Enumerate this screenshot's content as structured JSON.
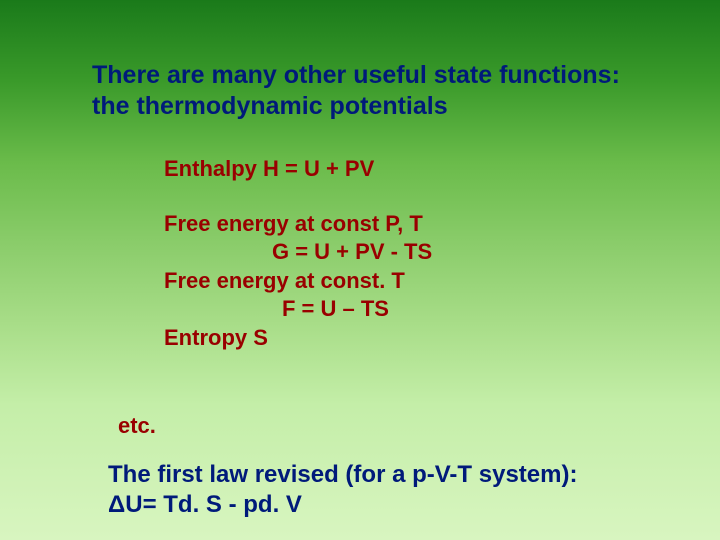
{
  "slide": {
    "background": {
      "gradient_stops": [
        "#1a7a1a",
        "#3a9a2a",
        "#6abb4a",
        "#8acc6a",
        "#a8dd88",
        "#c4eea8",
        "#d8f5c0"
      ]
    },
    "heading": {
      "line1": "There are many other useful state functions:",
      "line2": "the thermodynamic potentials",
      "color": "#001a7a",
      "fontsize": 25,
      "fontweight": "bold"
    },
    "body": {
      "color": "#990000",
      "fontsize": 22,
      "fontweight": "bold",
      "enthalpy": "Enthalpy H = U + PV",
      "free_pt_label": "Free energy at const P, T",
      "free_pt_eq": "G = U + PV - TS",
      "free_t_label": "Free energy at const. T",
      "free_t_eq": "F = U – TS",
      "entropy": "Entropy S",
      "etc": "etc."
    },
    "footer": {
      "line1": "The first law revised (for a p-V-T system):",
      "line2": "ΔU= Td. S - pd. V",
      "color": "#001a7a",
      "fontsize": 24,
      "fontweight": "bold"
    }
  }
}
